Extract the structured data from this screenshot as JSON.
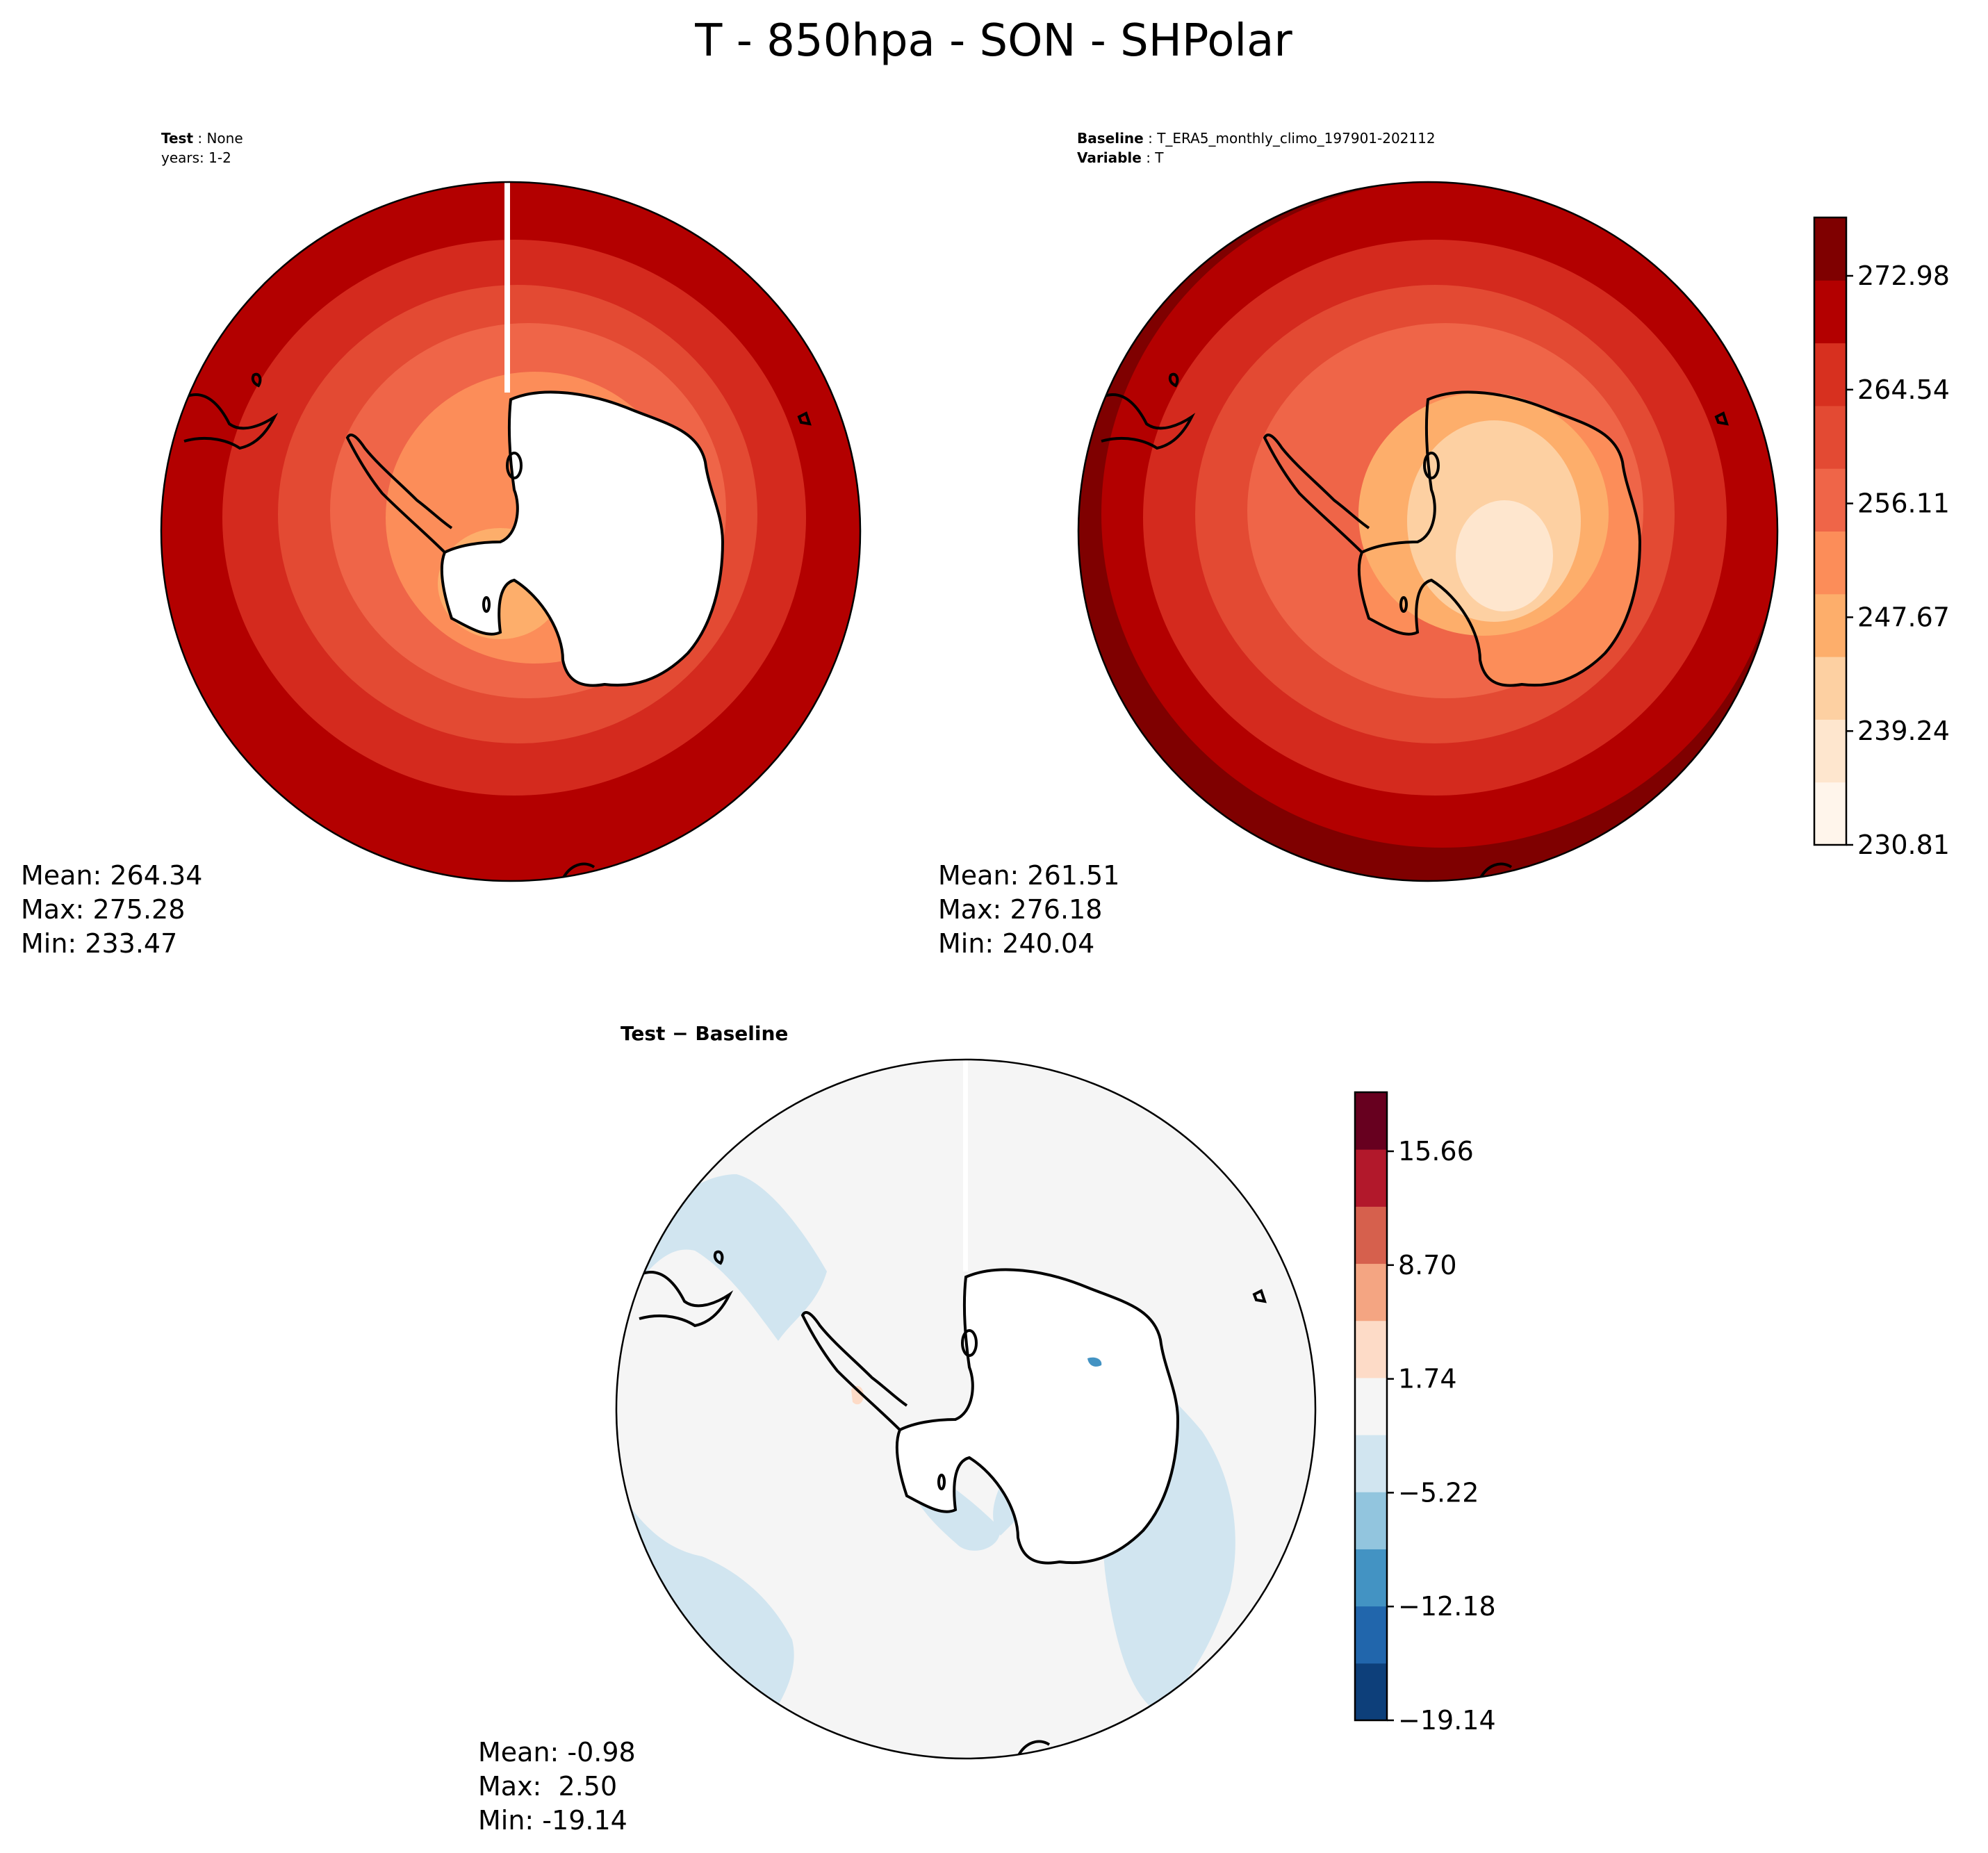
{
  "title": "T - 850hpa - SON - SHPolar",
  "panels": {
    "test": {
      "header_bold": "Test",
      "header_value": "None",
      "header_line2": "years: 1-2",
      "stats": {
        "mean": "Mean: 264.34",
        "max": "Max: 275.28",
        "min": "Min: 233.47"
      }
    },
    "baseline": {
      "header_bold": "Baseline",
      "header_value": "T_ERA5_monthly_climo_197901-202112",
      "header2_bold": "Variable",
      "header2_value": "T",
      "stats": {
        "mean": "Mean: 261.51",
        "max": "Max: 276.18",
        "min": "Min: 240.04"
      }
    },
    "diff": {
      "header": "Test − Baseline",
      "stats": {
        "mean": "Mean: -0.98",
        "max": "Max:  2.50",
        "min": "Min: -19.14"
      }
    }
  },
  "colorbars": {
    "absolute": {
      "tick_labels": [
        "272.98",
        "264.54",
        "256.11",
        "247.67",
        "239.24",
        "230.81"
      ],
      "colors": [
        "#fff5eb",
        "#fee6ce",
        "#fdd0a2",
        "#fdae6b",
        "#fc8d59",
        "#ef6548",
        "#e34a33",
        "#d7301f",
        "#b30000",
        "#7f0000"
      ]
    },
    "difference": {
      "tick_labels": [
        "15.66",
        "8.70",
        "1.74",
        "−5.22",
        "−12.18",
        "−19.14"
      ],
      "colors": [
        "#0d3f7a",
        "#2166ac",
        "#4393c3",
        "#92c5de",
        "#d1e5f0",
        "#f5f5f5",
        "#fddbc7",
        "#f4a582",
        "#d6604d",
        "#b2182b",
        "#67001f"
      ]
    }
  },
  "colors": {
    "ocean_outer": "#b30000",
    "ring1": "#d42a1e",
    "ring2": "#e34a33",
    "ring3": "#ef6548",
    "ring4": "#fc8d59",
    "ring5": "#fdae6b",
    "ice_light": "#fdd0a2",
    "ice_lightest": "#fee6ce",
    "missing": "#ffffff",
    "diff_neutral": "#f5f5f5",
    "diff_light_blue": "#d1e5f0",
    "coastline": "#000000"
  }
}
